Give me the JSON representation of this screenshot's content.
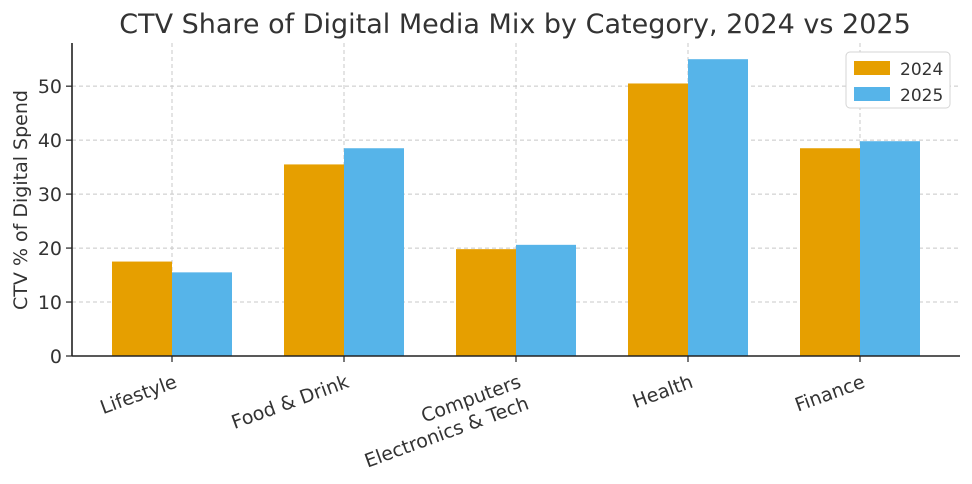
{
  "chart_data": {
    "type": "bar",
    "title": "CTV Share of Digital Media Mix by Category, 2024 vs 2025",
    "xlabel": "",
    "ylabel": "CTV % of Digital Spend",
    "categories": [
      "Lifestyle",
      "Food & Drink",
      "Computers\nElectronics & Tech",
      "Health",
      "Finance"
    ],
    "series": [
      {
        "name": "2024",
        "color": "#E69F00",
        "values": [
          17.5,
          35.5,
          19.8,
          50.5,
          38.5
        ]
      },
      {
        "name": "2025",
        "color": "#56B4E9",
        "values": [
          15.5,
          38.5,
          20.6,
          55.0,
          39.8
        ]
      }
    ],
    "ylim": [
      0,
      58
    ],
    "yticks": [
      0,
      10,
      20,
      30,
      40,
      50
    ],
    "grid": true,
    "legend_position": "top-right"
  }
}
